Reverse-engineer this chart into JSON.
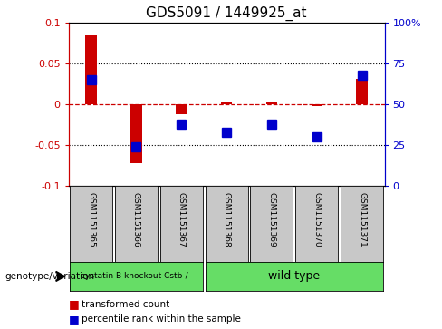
{
  "title": "GDS5091 / 1449925_at",
  "samples": [
    "GSM1151365",
    "GSM1151366",
    "GSM1151367",
    "GSM1151368",
    "GSM1151369",
    "GSM1151370",
    "GSM1151371"
  ],
  "red_values": [
    0.085,
    -0.072,
    -0.012,
    0.002,
    0.004,
    -0.002,
    0.032
  ],
  "blue_values_pct": [
    65,
    24,
    38,
    33,
    38,
    30,
    68
  ],
  "ylim": [
    -0.1,
    0.1
  ],
  "yticks_left": [
    -0.1,
    -0.05,
    0.0,
    0.05,
    0.1
  ],
  "yticks_right": [
    0,
    25,
    50,
    75,
    100
  ],
  "group0_label": "cystatin B knockout Cstb-/-",
  "group0_count": 3,
  "group1_label": "wild type",
  "group1_count": 4,
  "group_color": "#66dd66",
  "label_bg_color": "#c8c8c8",
  "red_color": "#cc0000",
  "blue_color": "#0000cc",
  "zero_line_color": "#cc0000",
  "grid_color": "#000000",
  "bar_width": 0.25,
  "marker_size": 7,
  "title_fontsize": 11,
  "tick_fontsize": 8,
  "label_fontsize": 7.5
}
